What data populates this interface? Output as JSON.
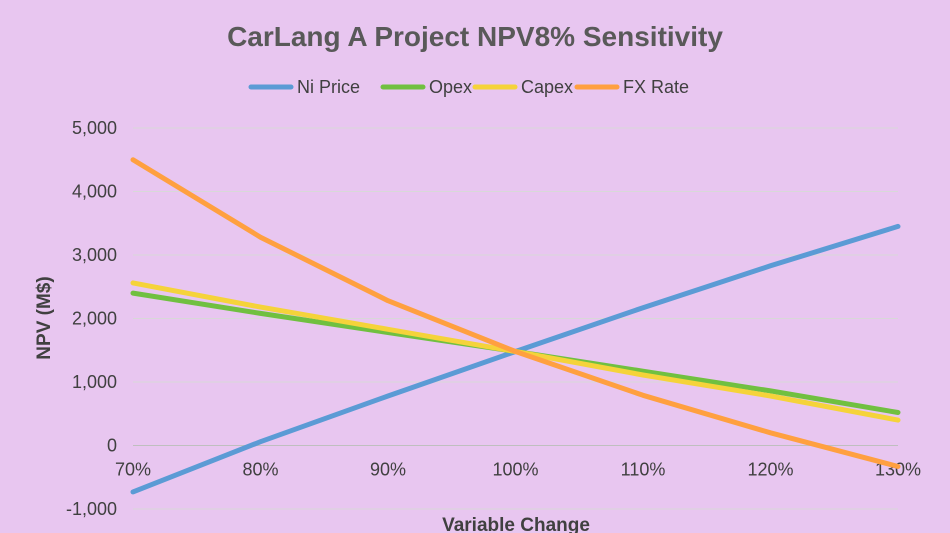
{
  "chart_data": {
    "type": "line",
    "title": "CarLang A Project NPV8% Sensitivity",
    "xlabel": "Variable Change",
    "ylabel": "NPV (M$)",
    "categories": [
      "70%",
      "80%",
      "90%",
      "100%",
      "110%",
      "120%",
      "130%"
    ],
    "ylim": [
      -1000,
      5000
    ],
    "yticks": [
      -1000,
      0,
      1000,
      2000,
      3000,
      4000,
      5000
    ],
    "ytick_labels": [
      "-1,000",
      "0",
      "1,000",
      "2,000",
      "3,000",
      "4,000",
      "5,000"
    ],
    "grid": true,
    "legend_position": "top",
    "series": [
      {
        "name": "Ni Price",
        "color": "#5b9bd5",
        "values": [
          -730,
          60,
          780,
          1480,
          2170,
          2830,
          3450
        ]
      },
      {
        "name": "Opex",
        "color": "#70c040",
        "values": [
          2400,
          2080,
          1780,
          1480,
          1170,
          860,
          520
        ]
      },
      {
        "name": "Capex",
        "color": "#f5d33a",
        "values": [
          2560,
          2180,
          1830,
          1480,
          1110,
          780,
          400
        ]
      },
      {
        "name": "FX Rate",
        "color": "#ffa040",
        "values": [
          4500,
          3280,
          2280,
          1480,
          790,
          200,
          -330
        ]
      }
    ]
  }
}
